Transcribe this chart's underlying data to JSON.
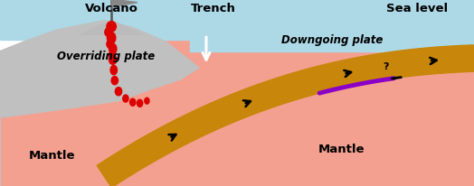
{
  "bg_color": "#ffffff",
  "sky_color": "#ADD8E6",
  "mantle_color": "#F4A090",
  "overriding_plate_color": "#C0C0C0",
  "downgoing_plate_color": "#C8860A",
  "ocean_color": "#ADD8E6",
  "seismogenic_color": "#8B00C8",
  "magma_color": "#DD0000",
  "labels": {
    "volcano": "Volcano",
    "trench": "Trench",
    "sea_level": "Sea level",
    "overriding_plate": "Overriding plate",
    "downgoing_plate": "Downgoing plate",
    "mantle_left": "Mantle",
    "mantle_right": "Mantle"
  }
}
